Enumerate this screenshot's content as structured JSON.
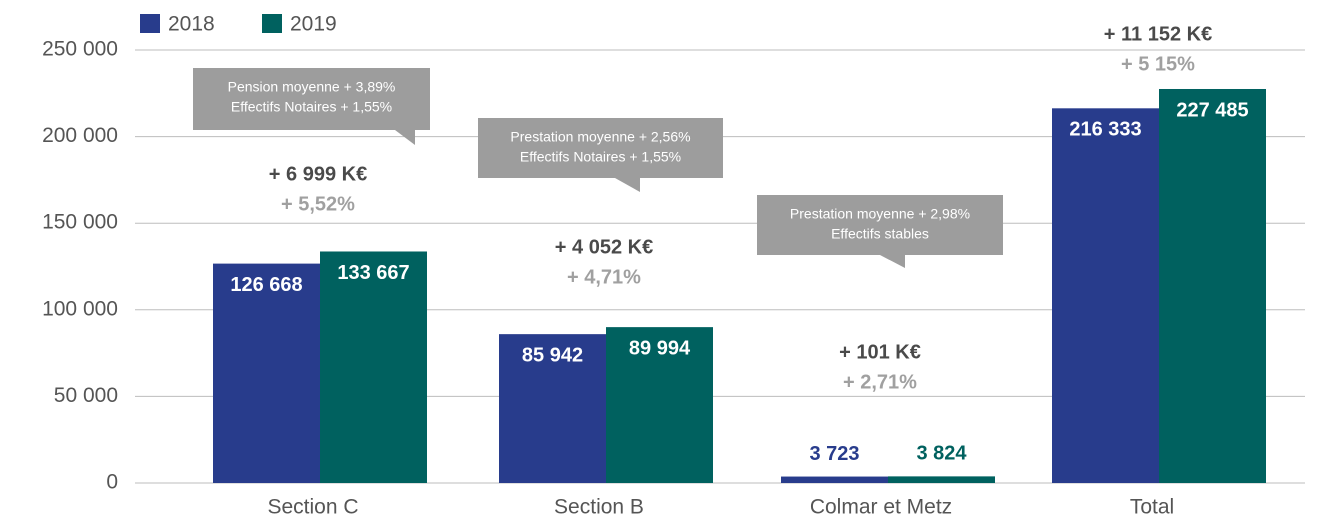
{
  "chart_data": {
    "type": "bar",
    "categories": [
      "Section C",
      "Section B",
      "Colmar et Metz",
      "Total"
    ],
    "series": [
      {
        "name": "2018",
        "color": "#283c8c",
        "values": [
          126668,
          85942,
          3723,
          216333
        ],
        "value_labels": [
          "126 668",
          "85 942",
          "3 723",
          "216 333"
        ]
      },
      {
        "name": "2019",
        "color": "#00615f",
        "values": [
          133667,
          89994,
          3824,
          227485
        ],
        "value_labels": [
          "133 667",
          "89 994",
          "3 824",
          "227 485"
        ]
      }
    ],
    "ylim": [
      0,
      250000
    ],
    "yticks": [
      0,
      {
        "value": 50000,
        "label": "50 000"
      },
      {
        "value": 100000,
        "label": "100 000"
      },
      {
        "value": 150000,
        "label": "150 000"
      },
      {
        "value": 200000,
        "label": "200 000"
      },
      {
        "value": 250000,
        "label": "250 000"
      }
    ],
    "grid": true,
    "legend": "top-left",
    "annotations": [
      {
        "delta": "+ 6 999 K€",
        "pct": "+ 5,52%",
        "note": [
          "Pension moyenne + 3,89%",
          "Effectifs Notaires + 1,55%"
        ]
      },
      {
        "delta": "+ 4 052 K€",
        "pct": "+ 4,71%",
        "note": [
          "Prestation moyenne + 2,56%",
          "Effectifs Notaires + 1,55%"
        ]
      },
      {
        "delta": "+ 101 K€",
        "pct": "+ 2,71%",
        "note": [
          "Prestation moyenne + 2,98%",
          "Effectifs stables"
        ]
      },
      {
        "delta": "+ 11 152 K€",
        "pct": "+ 5 15%"
      }
    ]
  }
}
